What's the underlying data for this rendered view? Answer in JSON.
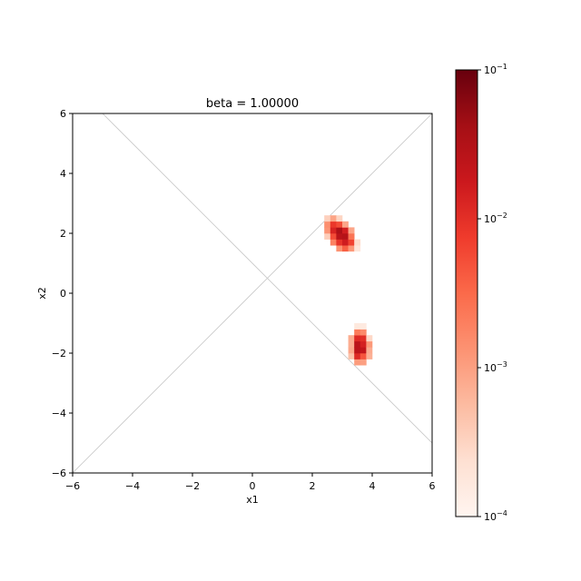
{
  "chart_data": {
    "type": "heatmap",
    "title": "beta = 1.00000",
    "xlabel": "x1",
    "ylabel": "x2",
    "xlim": [
      -6,
      6
    ],
    "ylim": [
      -6,
      6
    ],
    "xticks": [
      -6,
      -4,
      -2,
      0,
      2,
      4,
      6
    ],
    "yticks": [
      -6,
      -4,
      -2,
      0,
      2,
      4,
      6
    ],
    "xtick_labels": [
      "−6",
      "−4",
      "−2",
      "0",
      "2",
      "4",
      "6"
    ],
    "ytick_labels": [
      "−6",
      "−4",
      "−2",
      "0",
      "2",
      "4",
      "6"
    ],
    "bin_size": 0.2,
    "colormap": "Reds",
    "color_scale": "log",
    "color_range": [
      0.0001,
      0.1
    ],
    "colorbar_ticks": [
      {
        "mantissa": "10",
        "exponent": "−4",
        "value": 0.0001
      },
      {
        "mantissa": "10",
        "exponent": "−3",
        "value": 0.001
      },
      {
        "mantissa": "10",
        "exponent": "−2",
        "value": 0.01
      },
      {
        "mantissa": "10",
        "exponent": "−1",
        "value": 0.1
      }
    ],
    "reference_lines": [
      {
        "points": [
          [
            -5,
            6
          ],
          [
            6,
            -5
          ]
        ],
        "color": "#c8c8c8"
      },
      {
        "points": [
          [
            -6,
            -6
          ],
          [
            6,
            6
          ]
        ],
        "color": "#c8c8c8"
      }
    ],
    "clusters": [
      {
        "center": [
          2.95,
          1.95
        ],
        "sigma": [
          0.18,
          0.2
        ],
        "rho": -0.45,
        "peak": 0.035
      },
      {
        "center": [
          3.6,
          -1.8
        ],
        "sigma": [
          0.12,
          0.22
        ],
        "rho": 0.0,
        "peak": 0.03
      }
    ]
  }
}
